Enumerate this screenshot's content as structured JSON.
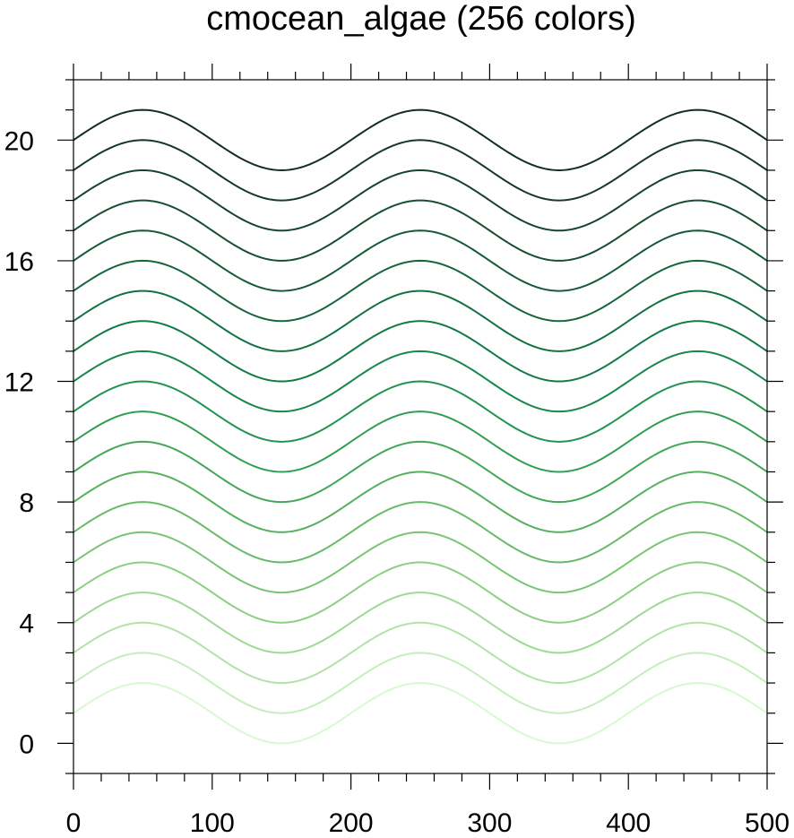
{
  "chart_data": {
    "type": "line",
    "title": "cmocean_algae (256 colors)",
    "xlabel": "",
    "ylabel": "",
    "xlim": [
      0,
      500
    ],
    "ylim": [
      -1,
      22
    ],
    "grid": false,
    "legend": "none",
    "x_ticks": [
      0,
      100,
      200,
      300,
      400,
      500
    ],
    "x_tick_labels": [
      "0",
      "100",
      "200",
      "300",
      "400",
      "500"
    ],
    "y_ticks": [
      0,
      4,
      8,
      12,
      16,
      20
    ],
    "y_tick_labels": [
      "0",
      "4",
      "8",
      "12",
      "16",
      "20"
    ],
    "curve": {
      "function": "offset + sin(2*pi*x/200)",
      "x_step": 2
    },
    "series": [
      {
        "offset": 1,
        "color": "#d7f9d0"
      },
      {
        "offset": 2,
        "color": "#c4eebc"
      },
      {
        "offset": 3,
        "color": "#b1e3a8"
      },
      {
        "offset": 4,
        "color": "#9ed995"
      },
      {
        "offset": 5,
        "color": "#8ccf83"
      },
      {
        "offset": 6,
        "color": "#79c574"
      },
      {
        "offset": 7,
        "color": "#67bb67"
      },
      {
        "offset": 8,
        "color": "#55b15e"
      },
      {
        "offset": 9,
        "color": "#43a757"
      },
      {
        "offset": 10,
        "color": "#329d53"
      },
      {
        "offset": 11,
        "color": "#229250"
      },
      {
        "offset": 12,
        "color": "#17874c"
      },
      {
        "offset": 13,
        "color": "#137b47"
      },
      {
        "offset": 14,
        "color": "#137042"
      },
      {
        "offset": 15,
        "color": "#15653d"
      },
      {
        "offset": 16,
        "color": "#165a37"
      },
      {
        "offset": 17,
        "color": "#174f31"
      },
      {
        "offset": 18,
        "color": "#17442b"
      },
      {
        "offset": 19,
        "color": "#163924"
      },
      {
        "offset": 20,
        "color": "#132f1d"
      }
    ]
  }
}
